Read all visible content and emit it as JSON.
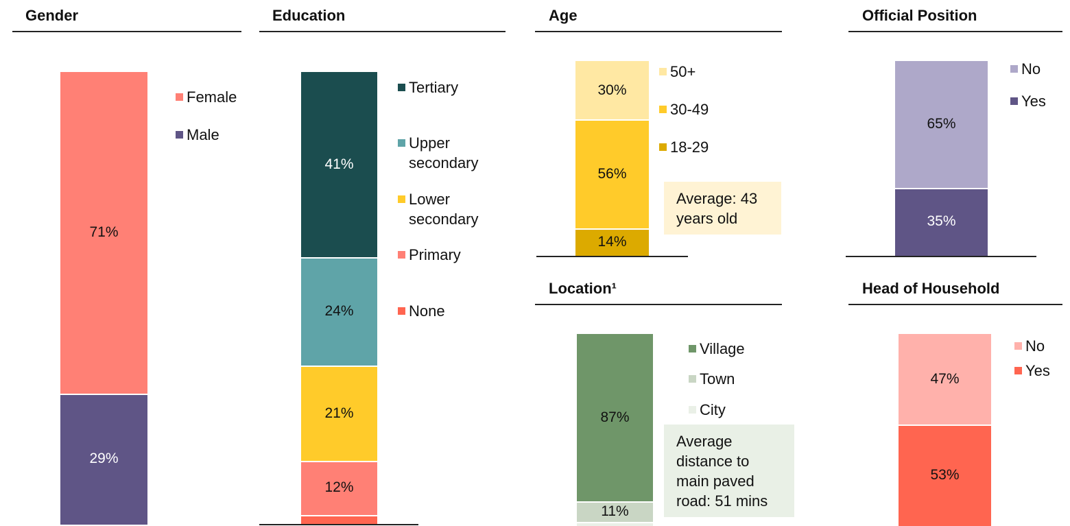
{
  "chart_data": [
    {
      "type": "stacked_bar",
      "title": "Gender",
      "ylim": [
        0,
        100
      ],
      "series": [
        {
          "name": "Female",
          "color": "#ff8075",
          "values": [
            71
          ],
          "value_labels": [
            "71%"
          ]
        },
        {
          "name": "Male",
          "color": "#5f5586",
          "values": [
            29
          ],
          "value_labels": [
            "29%"
          ]
        }
      ]
    },
    {
      "type": "stacked_bar",
      "title": "Education",
      "ylim": [
        0,
        100
      ],
      "series": [
        {
          "name": "Tertiary",
          "color": "#1b4d4f",
          "values": [
            41
          ],
          "value_labels": [
            "41%"
          ]
        },
        {
          "name": "Upper secondary",
          "color": "#5fa4a8",
          "values": [
            24
          ],
          "value_labels": [
            "24%"
          ]
        },
        {
          "name": "Lower secondary",
          "color": "#ffcb2a",
          "values": [
            21
          ],
          "value_labels": [
            "21%"
          ]
        },
        {
          "name": "Primary",
          "color": "#ff8075",
          "values": [
            12
          ],
          "value_labels": [
            "12%"
          ]
        },
        {
          "name": "None",
          "color": "#ff6550",
          "values": [
            2
          ]
        }
      ]
    },
    {
      "type": "stacked_bar",
      "title": "Age",
      "ylim": [
        0,
        100
      ],
      "annotation": "Average: 43 years old",
      "series": [
        {
          "name": "50+",
          "color": "#ffe8a3",
          "values": [
            30
          ],
          "value_labels": [
            "30%"
          ]
        },
        {
          "name": "30-49",
          "color": "#ffcb2a",
          "values": [
            56
          ],
          "value_labels": [
            "56%"
          ]
        },
        {
          "name": "18-29",
          "color": "#dcaa00",
          "values": [
            14
          ],
          "value_labels": [
            "14%"
          ]
        }
      ]
    },
    {
      "type": "stacked_bar",
      "title": "Official Position",
      "ylim": [
        0,
        100
      ],
      "series": [
        {
          "name": "No",
          "color": "#aea8c9",
          "values": [
            65
          ],
          "value_labels": [
            "65%"
          ]
        },
        {
          "name": "Yes",
          "color": "#5f5586",
          "values": [
            35
          ],
          "value_labels": [
            "35%"
          ]
        }
      ]
    },
    {
      "type": "stacked_bar",
      "title": "Location¹",
      "ylim": [
        0,
        100
      ],
      "annotation": "Average distance to main paved road: 51 mins",
      "series": [
        {
          "name": "Village",
          "color": "#6f9669",
          "values": [
            87
          ],
          "value_labels": [
            "87%"
          ]
        },
        {
          "name": "Town",
          "color": "#c9d6c4",
          "values": [
            11
          ],
          "value_labels": [
            "11%"
          ]
        },
        {
          "name": "City",
          "color": "#eaf0e7",
          "values": [
            2
          ]
        }
      ]
    },
    {
      "type": "stacked_bar",
      "title": "Head of Household",
      "ylim": [
        0,
        100
      ],
      "series": [
        {
          "name": "No",
          "color": "#ffb1ab",
          "values": [
            47
          ],
          "value_labels": [
            "47%"
          ]
        },
        {
          "name": "Yes",
          "color": "#ff6550",
          "values": [
            53
          ],
          "value_labels": [
            "53%"
          ]
        }
      ]
    }
  ]
}
